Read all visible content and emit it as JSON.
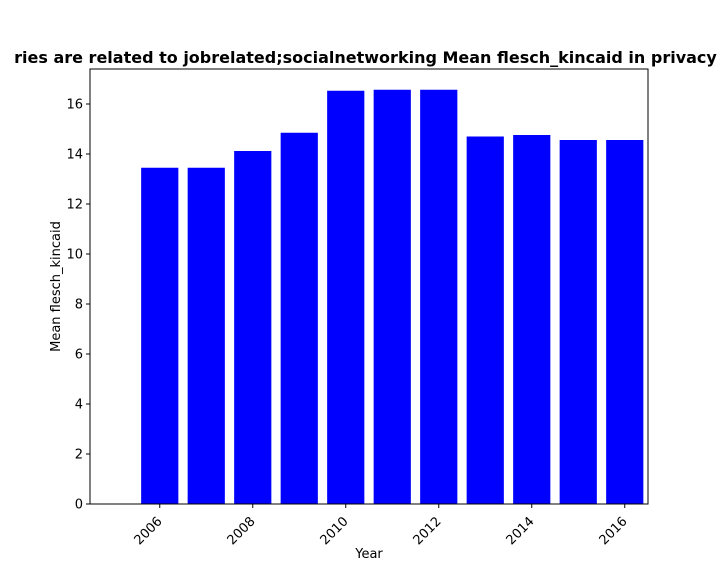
{
  "chart_data": {
    "type": "bar",
    "title": "ries are related to jobrelated;socialnetworking Mean flesch_kincaid in privacy p",
    "xlabel": "Year",
    "ylabel": "Mean flesch_kincaid",
    "categories": [
      2006,
      2007,
      2008,
      2009,
      2010,
      2011,
      2012,
      2013,
      2014,
      2015,
      2016
    ],
    "values": [
      13.45,
      13.45,
      14.12,
      14.85,
      16.53,
      16.57,
      16.57,
      14.7,
      14.76,
      14.56,
      14.56
    ],
    "bar_color": "#0000ff",
    "xticks": [
      "2006",
      "2008",
      "2010",
      "2012",
      "2014",
      "2016"
    ],
    "yticks": [
      "0",
      "2",
      "4",
      "6",
      "8",
      "10",
      "12",
      "14",
      "16"
    ],
    "ylim": [
      0,
      17.4
    ],
    "grid": false,
    "legend": "none"
  }
}
